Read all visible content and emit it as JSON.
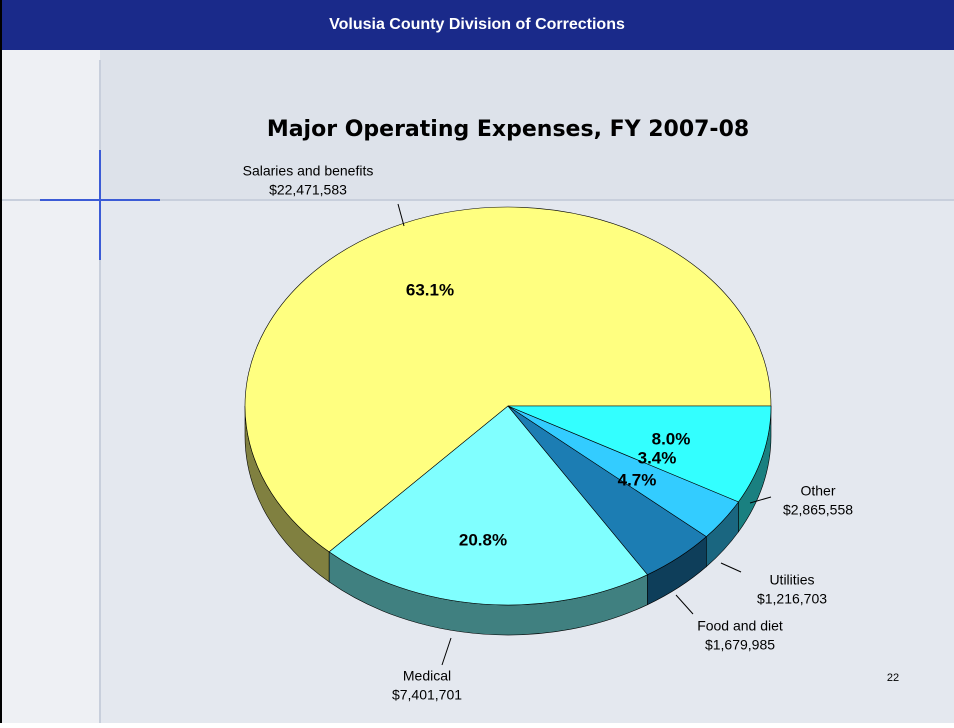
{
  "header": {
    "title": "Volusia County Division of Corrections"
  },
  "chart_data": {
    "type": "pie",
    "title": "Major Operating Expenses, FY 2007-08",
    "categories": [
      "Salaries and benefits",
      "Medical",
      "Food and diet",
      "Utilities",
      "Other"
    ],
    "values": [
      63.1,
      20.8,
      4.7,
      3.4,
      8.0
    ],
    "value_labels": [
      "63.1%",
      "20.8%",
      "4.7%",
      "3.4%",
      "8.0%"
    ],
    "amounts": [
      22471583,
      7401701,
      1679985,
      1216703,
      2865558
    ],
    "amount_labels": [
      "$22,471,583",
      "$7,401,701",
      "$1,679,985",
      "$1,216,703",
      "$2,865,558"
    ],
    "colors": [
      "#ffff80",
      "#80ffff",
      "#1c7db3",
      "#33ccff",
      "#33ffff"
    ],
    "side_colors": [
      "#808040",
      "#408080",
      "#0e3e5a",
      "#1a6680",
      "#1a8080"
    ]
  },
  "footer": {
    "page_number": "22"
  }
}
